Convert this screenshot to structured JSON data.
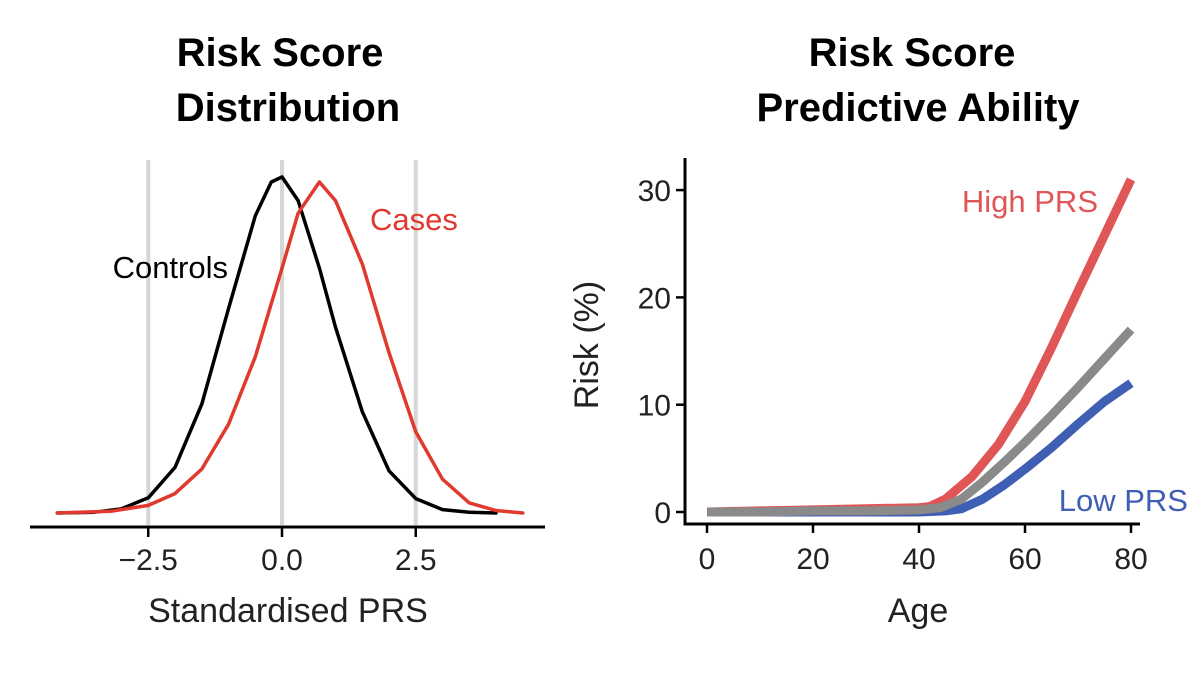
{
  "chart_data": [
    {
      "type": "line",
      "title_lines": [
        "Risk Score",
        "Distribution"
      ],
      "xlabel": "Standardised PRS",
      "ylabel": "",
      "xlim": [
        -4.4,
        4.8
      ],
      "ylim": [
        0,
        0.45
      ],
      "xticks": [
        -2.5,
        0.0,
        2.5
      ],
      "xtick_labels": [
        "−2.5",
        "0.0",
        "2.5"
      ],
      "vlines": [
        -2.5,
        0.0,
        2.5
      ],
      "grid": false,
      "series": [
        {
          "name": "Controls",
          "color": "#000000",
          "x": [
            -4.2,
            -3.5,
            -3.0,
            -2.5,
            -2.0,
            -1.5,
            -1.0,
            -0.5,
            -0.2,
            0.0,
            0.3,
            0.7,
            1.0,
            1.5,
            2.0,
            2.5,
            3.0,
            3.5,
            4.0
          ],
          "y": [
            0.0,
            0.001,
            0.005,
            0.018,
            0.054,
            0.129,
            0.242,
            0.352,
            0.392,
            0.398,
            0.37,
            0.29,
            0.22,
            0.12,
            0.05,
            0.017,
            0.004,
            0.001,
            0.0
          ]
        },
        {
          "name": "Cases",
          "color": "#e03a2f",
          "x": [
            -4.2,
            -3.2,
            -2.5,
            -2.0,
            -1.5,
            -1.0,
            -0.5,
            0.0,
            0.3,
            0.7,
            1.0,
            1.5,
            2.0,
            2.5,
            3.0,
            3.5,
            4.0,
            4.5
          ],
          "y": [
            0.0,
            0.002,
            0.009,
            0.023,
            0.052,
            0.105,
            0.185,
            0.29,
            0.355,
            0.392,
            0.37,
            0.295,
            0.19,
            0.096,
            0.04,
            0.012,
            0.003,
            0.0
          ]
        }
      ]
    },
    {
      "type": "line",
      "title_lines": [
        "Risk Score",
        "Predictive Ability"
      ],
      "xlabel": "Age",
      "ylabel": "Risk (%)",
      "xlim": [
        -4,
        82
      ],
      "ylim": [
        -1.5,
        33
      ],
      "xticks": [
        0,
        20,
        40,
        60,
        80
      ],
      "xtick_labels": [
        "0",
        "20",
        "40",
        "60",
        "80"
      ],
      "yticks": [
        0,
        10,
        20,
        30
      ],
      "ytick_labels": [
        "0",
        "10",
        "20",
        "30"
      ],
      "grid": false,
      "series": [
        {
          "name": "High PRS",
          "color": "#e05656",
          "x": [
            0,
            10,
            20,
            30,
            40,
            42,
            45,
            50,
            55,
            60,
            65,
            70,
            75,
            80
          ],
          "y": [
            0,
            0.1,
            0.2,
            0.3,
            0.4,
            0.5,
            1.2,
            3.3,
            6.3,
            10.3,
            15.3,
            20.6,
            25.8,
            31.0
          ]
        },
        {
          "name": "",
          "color": "#8a8a8a",
          "x": [
            0,
            10,
            20,
            30,
            40,
            44,
            48,
            52,
            56,
            60,
            65,
            70,
            75,
            80
          ],
          "y": [
            0,
            0,
            0.1,
            0.1,
            0.2,
            0.4,
            1.2,
            2.8,
            4.6,
            6.5,
            9.0,
            11.6,
            14.3,
            17.0
          ]
        },
        {
          "name": "Low PRS",
          "color": "#3f5fb5",
          "x": [
            0,
            10,
            20,
            30,
            40,
            45,
            48,
            52,
            56,
            60,
            65,
            70,
            75,
            80
          ],
          "y": [
            0,
            0,
            0,
            0,
            0,
            0.1,
            0.3,
            1.2,
            2.5,
            4.0,
            6.0,
            8.2,
            10.3,
            12.0
          ]
        }
      ]
    }
  ]
}
